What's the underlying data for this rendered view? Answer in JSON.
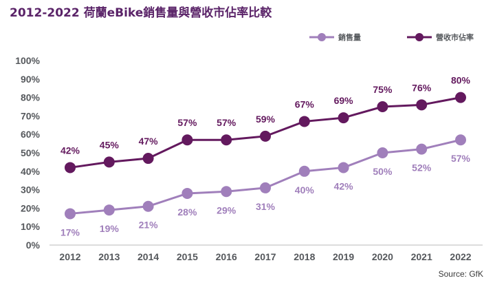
{
  "chart_data": {
    "type": "line",
    "title": "2012-2022 荷蘭eBike銷售量與營收市佔率比較",
    "source": "Source: GfK",
    "categories": [
      "2012",
      "2013",
      "2014",
      "2015",
      "2016",
      "2017",
      "2018",
      "2019",
      "2020",
      "2021",
      "2022"
    ],
    "y_ticks": [
      "0%",
      "10%",
      "20%",
      "30%",
      "40%",
      "50%",
      "60%",
      "70%",
      "80%",
      "90%",
      "100%"
    ],
    "ylim": [
      0,
      100
    ],
    "grid": false,
    "legend_position": "top-right",
    "series": [
      {
        "name": "銷售量",
        "color": "#a07fbb",
        "values": [
          17,
          19,
          21,
          28,
          29,
          31,
          40,
          42,
          50,
          52,
          57
        ],
        "labels": [
          "17%",
          "19%",
          "21%",
          "28%",
          "29%",
          "31%",
          "40%",
          "42%",
          "50%",
          "52%",
          "57%"
        ],
        "label_position": "below"
      },
      {
        "name": "營收市佔率",
        "color": "#63195e",
        "values": [
          42,
          45,
          47,
          57,
          57,
          59,
          67,
          69,
          75,
          76,
          80
        ],
        "labels": [
          "42%",
          "45%",
          "47%",
          "57%",
          "57%",
          "59%",
          "67%",
          "69%",
          "75%",
          "76%",
          "80%"
        ],
        "label_position": "above"
      }
    ]
  }
}
